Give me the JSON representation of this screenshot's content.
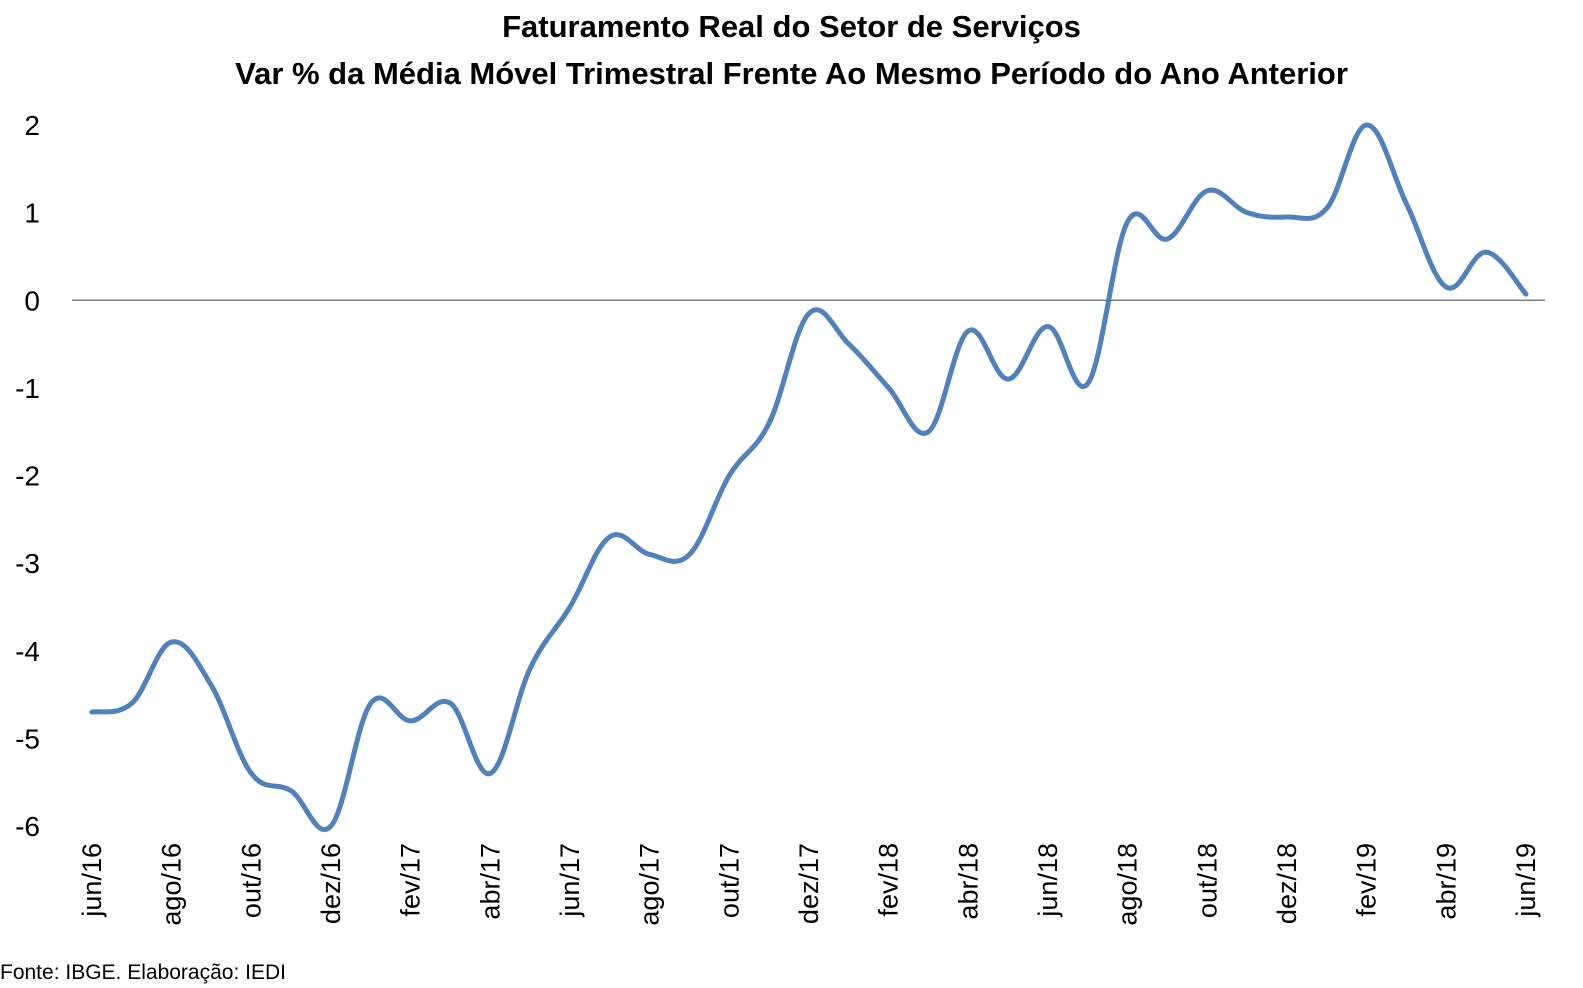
{
  "chart_data": {
    "type": "line",
    "title": "Faturamento Real do Setor de Serviços",
    "subtitle": "Var % da Média Móvel Trimestral Frente Ao Mesmo Período do Ano Anterior",
    "xlabel": "",
    "ylabel": "",
    "ylim": [
      -6,
      2
    ],
    "yticks": [
      "2",
      "1",
      "0",
      "-1",
      "-2",
      "-3",
      "-4",
      "-5",
      "-6"
    ],
    "tick_categories": [
      "jun/16",
      "ago/16",
      "out/16",
      "dez/16",
      "fev/17",
      "abr/17",
      "jun/17",
      "ago/17",
      "out/17",
      "dez/17",
      "fev/18",
      "abr/18",
      "jun/18",
      "ago/18",
      "out/18",
      "dez/18",
      "fev/19",
      "abr/19",
      "jun/19"
    ],
    "categories": [
      "jun/16",
      "jul/16",
      "ago/16",
      "set/16",
      "out/16",
      "nov/16",
      "dez/16",
      "jan/17",
      "fev/17",
      "mar/17",
      "abr/17",
      "mai/17",
      "jun/17",
      "jul/17",
      "ago/17",
      "set/17",
      "out/17",
      "nov/17",
      "dez/17",
      "jan/18",
      "fev/18",
      "mar/18",
      "abr/18",
      "mai/18",
      "jun/18",
      "jul/18",
      "ago/18",
      "set/18",
      "out/18",
      "nov/18",
      "dez/18",
      "jan/19",
      "fev/19",
      "mar/19",
      "abr/19",
      "mai/19",
      "jun/19"
    ],
    "series": [
      {
        "values": [
          -4.7,
          -4.6,
          -3.9,
          -4.4,
          -5.4,
          -5.6,
          -6.0,
          -4.6,
          -4.8,
          -4.6,
          -5.4,
          -4.2,
          -3.5,
          -2.7,
          -2.9,
          -2.9,
          -2.0,
          -1.4,
          -0.15,
          -0.5,
          -1.0,
          -1.5,
          -0.35,
          -0.9,
          -0.3,
          -0.95,
          0.9,
          0.7,
          1.25,
          1.0,
          0.95,
          1.05,
          2.0,
          1.1,
          0.15,
          0.55,
          0.07
        ],
        "color": "#4f81bd"
      }
    ],
    "zero_line": true,
    "grid": false,
    "legend": "none"
  },
  "footer": {
    "source": "Fonte: IBGE. Elaboração: IEDI"
  }
}
